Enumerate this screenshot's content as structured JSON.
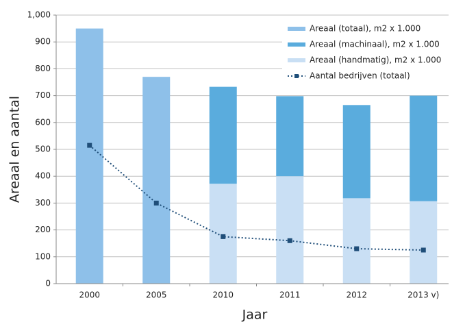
{
  "chart_data": {
    "type": "bar",
    "categories": [
      "2000",
      "2005",
      "2010",
      "2011",
      "2012",
      "2013 v)"
    ],
    "series": [
      {
        "name": "Areaal (totaal), m2 x 1.000",
        "color": "#8ec0e9",
        "values": [
          950,
          770,
          null,
          null,
          null,
          null
        ]
      },
      {
        "name": "Areaal (machinaal), m2 x 1.000",
        "color": "#5aacdd",
        "values": [
          null,
          null,
          361,
          298,
          347,
          393
        ]
      },
      {
        "name": "Areaal (handmatig), m2 x 1.000",
        "color": "#c9dff4",
        "values": [
          null,
          null,
          372,
          400,
          318,
          307
        ]
      },
      {
        "name": "Aantal bedrijven (totaal)",
        "color": "#1f4e79",
        "type": "line",
        "values": [
          515,
          300,
          175,
          160,
          130,
          125
        ]
      }
    ],
    "ylabel": "Areaal en aantal",
    "xlabel": "Jaar",
    "ylim": [
      0,
      1000
    ],
    "yticks": [
      0,
      100,
      200,
      300,
      400,
      500,
      600,
      700,
      800,
      900,
      {
        "value": 1000,
        "label": "1,000"
      }
    ],
    "grid": true,
    "legend": "top-right"
  }
}
